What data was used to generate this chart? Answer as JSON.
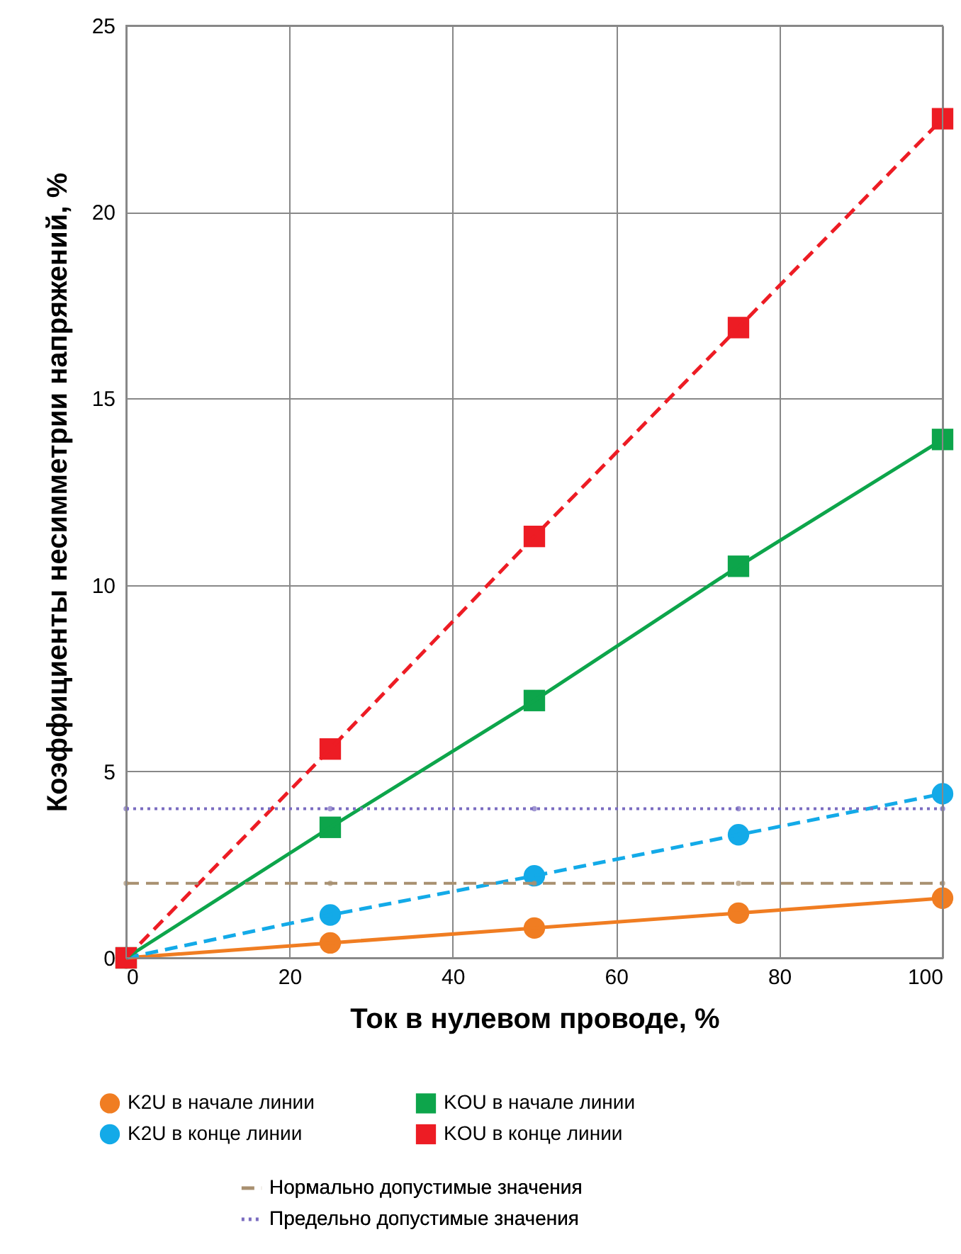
{
  "chart_data": {
    "type": "line",
    "xlabel": "Ток в нулевом проводе, %",
    "ylabel": "Коэффициенты несимметрии напряжений, %",
    "x": [
      0,
      25,
      50,
      75,
      100
    ],
    "series": [
      {
        "name": "K2U в начале линии",
        "color": "#f07d22",
        "marker": "circle",
        "line_style": "solid",
        "values": [
          0,
          0.4,
          0.8,
          1.2,
          1.6
        ]
      },
      {
        "name": "K2U в конце линии",
        "color": "#13aae8",
        "marker": "circle",
        "line_style": "dashed",
        "values": [
          0,
          1.15,
          2.2,
          3.3,
          4.4
        ]
      },
      {
        "name": "KOU в начале линии",
        "color": "#0da54b",
        "marker": "square",
        "line_style": "solid",
        "values": [
          0,
          3.5,
          6.9,
          10.5,
          13.9
        ]
      },
      {
        "name": "KOU в конце линии",
        "color": "#ed1c24",
        "marker": "square",
        "line_style": "dashed",
        "values": [
          0,
          5.6,
          11.3,
          16.9,
          22.5
        ]
      },
      {
        "name": "Нормально допустимые значения",
        "color": "#a89070",
        "marker": "none",
        "line_style": "dashed",
        "values": [
          2,
          2,
          2,
          2,
          2
        ]
      },
      {
        "name": "Предельно допустимые значения",
        "color": "#7a6cc0",
        "marker": "none",
        "line_style": "dotted",
        "values": [
          4,
          4,
          4,
          4,
          4
        ]
      }
    ],
    "xlim": [
      0,
      100
    ],
    "xticks": [
      0,
      20,
      40,
      60,
      80,
      100
    ],
    "ylim": [
      0,
      25
    ],
    "yticks": [
      0,
      5,
      10,
      15,
      20,
      25
    ],
    "grid": true,
    "legend": "bottom"
  }
}
